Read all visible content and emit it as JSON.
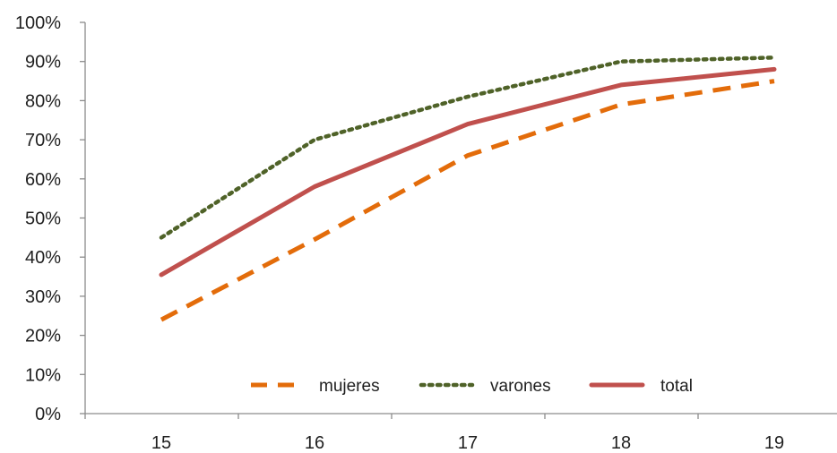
{
  "chart_data": {
    "type": "line",
    "title": "",
    "xlabel": "",
    "ylabel": "",
    "categories": [
      "15",
      "16",
      "17",
      "18",
      "19"
    ],
    "y_tick_labels": [
      "0%",
      "10%",
      "20%",
      "30%",
      "40%",
      "50%",
      "60%",
      "70%",
      "80%",
      "90%",
      "100%"
    ],
    "ylim": [
      0,
      100
    ],
    "y_unit": "percent",
    "grid": false,
    "legend_position": "bottom-inside",
    "series": [
      {
        "name": "mujeres",
        "values": [
          24,
          44.5,
          66,
          79,
          85
        ],
        "color": "#E36C0A",
        "dash": "dashed"
      },
      {
        "name": "varones",
        "values": [
          45,
          70,
          81,
          90,
          91
        ],
        "color": "#4F6228",
        "dash": "dotted"
      },
      {
        "name": "total",
        "values": [
          35.5,
          58,
          74,
          84,
          88
        ],
        "color": "#C0504D",
        "dash": "solid"
      }
    ]
  }
}
